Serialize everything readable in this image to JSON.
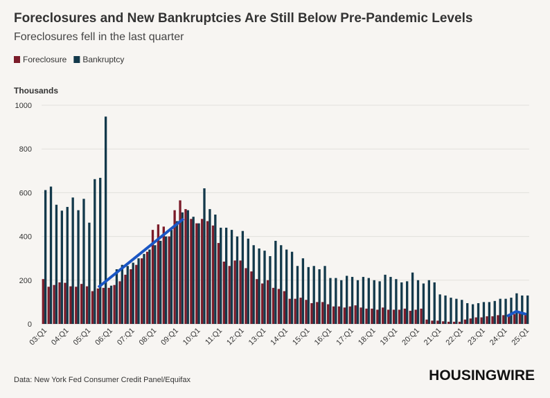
{
  "chart_data": {
    "type": "bar",
    "title": "Foreclosures and New Bankruptcies Are Still Below Pre-Pandemic Levels",
    "subtitle": "Foreclosures fell in the last quarter",
    "y_axis_label": "Thousands",
    "source": "Data: New York Fed Consumer Credit Panel/Equifax",
    "brand": "HOUSINGWIRE",
    "categories": [
      "03:Q1",
      null,
      null,
      null,
      "04:Q1",
      null,
      null,
      null,
      "05:Q1",
      null,
      null,
      null,
      "06:Q1",
      null,
      null,
      null,
      "07:Q1",
      null,
      null,
      null,
      "08:Q1",
      null,
      null,
      null,
      "09:Q1",
      null,
      null,
      null,
      "10:Q1",
      null,
      null,
      null,
      "11:Q1",
      null,
      null,
      null,
      "12:Q1",
      null,
      null,
      null,
      "13:Q1",
      null,
      null,
      null,
      "14:Q1",
      null,
      null,
      null,
      "15:Q1",
      null,
      null,
      null,
      "16:Q1",
      null,
      null,
      null,
      "17:Q1",
      null,
      null,
      null,
      "18:Q1",
      null,
      null,
      null,
      "19:Q1",
      null,
      null,
      null,
      "20:Q1",
      null,
      null,
      null,
      "21:Q1",
      null,
      null,
      null,
      "22:Q1",
      null,
      null,
      null,
      "23:Q1",
      null,
      null,
      null,
      "24:Q1",
      null,
      null,
      null,
      "25:Q1"
    ],
    "series": [
      {
        "name": "Foreclosure",
        "color": "#7b1c2a",
        "values": [
          205,
          170,
          178,
          190,
          188,
          172,
          170,
          183,
          172,
          150,
          162,
          165,
          165,
          178,
          195,
          225,
          250,
          270,
          300,
          330,
          430,
          455,
          445,
          400,
          520,
          565,
          525,
          480,
          460,
          480,
          470,
          450,
          370,
          285,
          265,
          290,
          290,
          255,
          240,
          205,
          185,
          200,
          165,
          160,
          150,
          115,
          115,
          120,
          110,
          95,
          100,
          100,
          90,
          80,
          80,
          75,
          80,
          85,
          75,
          70,
          70,
          65,
          75,
          65,
          65,
          65,
          70,
          60,
          65,
          70,
          20,
          15,
          15,
          12,
          10,
          10,
          10,
          20,
          25,
          30,
          30,
          35,
          35,
          40,
          40,
          45,
          45,
          50,
          45
        ]
      },
      {
        "name": "Bankruptcy",
        "color": "#13394b",
        "values": [
          612,
          628,
          545,
          518,
          535,
          578,
          520,
          572,
          463,
          662,
          668,
          948,
          175,
          250,
          270,
          265,
          280,
          300,
          320,
          340,
          360,
          380,
          400,
          430,
          470,
          510,
          520,
          490,
          460,
          620,
          525,
          500,
          440,
          440,
          430,
          400,
          425,
          390,
          360,
          345,
          335,
          310,
          380,
          360,
          340,
          330,
          265,
          300,
          260,
          265,
          250,
          265,
          210,
          210,
          200,
          220,
          215,
          200,
          215,
          210,
          200,
          195,
          225,
          215,
          205,
          190,
          195,
          235,
          200,
          185,
          200,
          190,
          135,
          130,
          120,
          115,
          110,
          95,
          90,
          95,
          100,
          100,
          105,
          115,
          115,
          120,
          140,
          130,
          130
        ]
      }
    ],
    "ylim": [
      0,
      1000
    ],
    "yticks": [
      0,
      200,
      400,
      600,
      800,
      1000
    ],
    "grid": true,
    "legend": "top-left"
  }
}
